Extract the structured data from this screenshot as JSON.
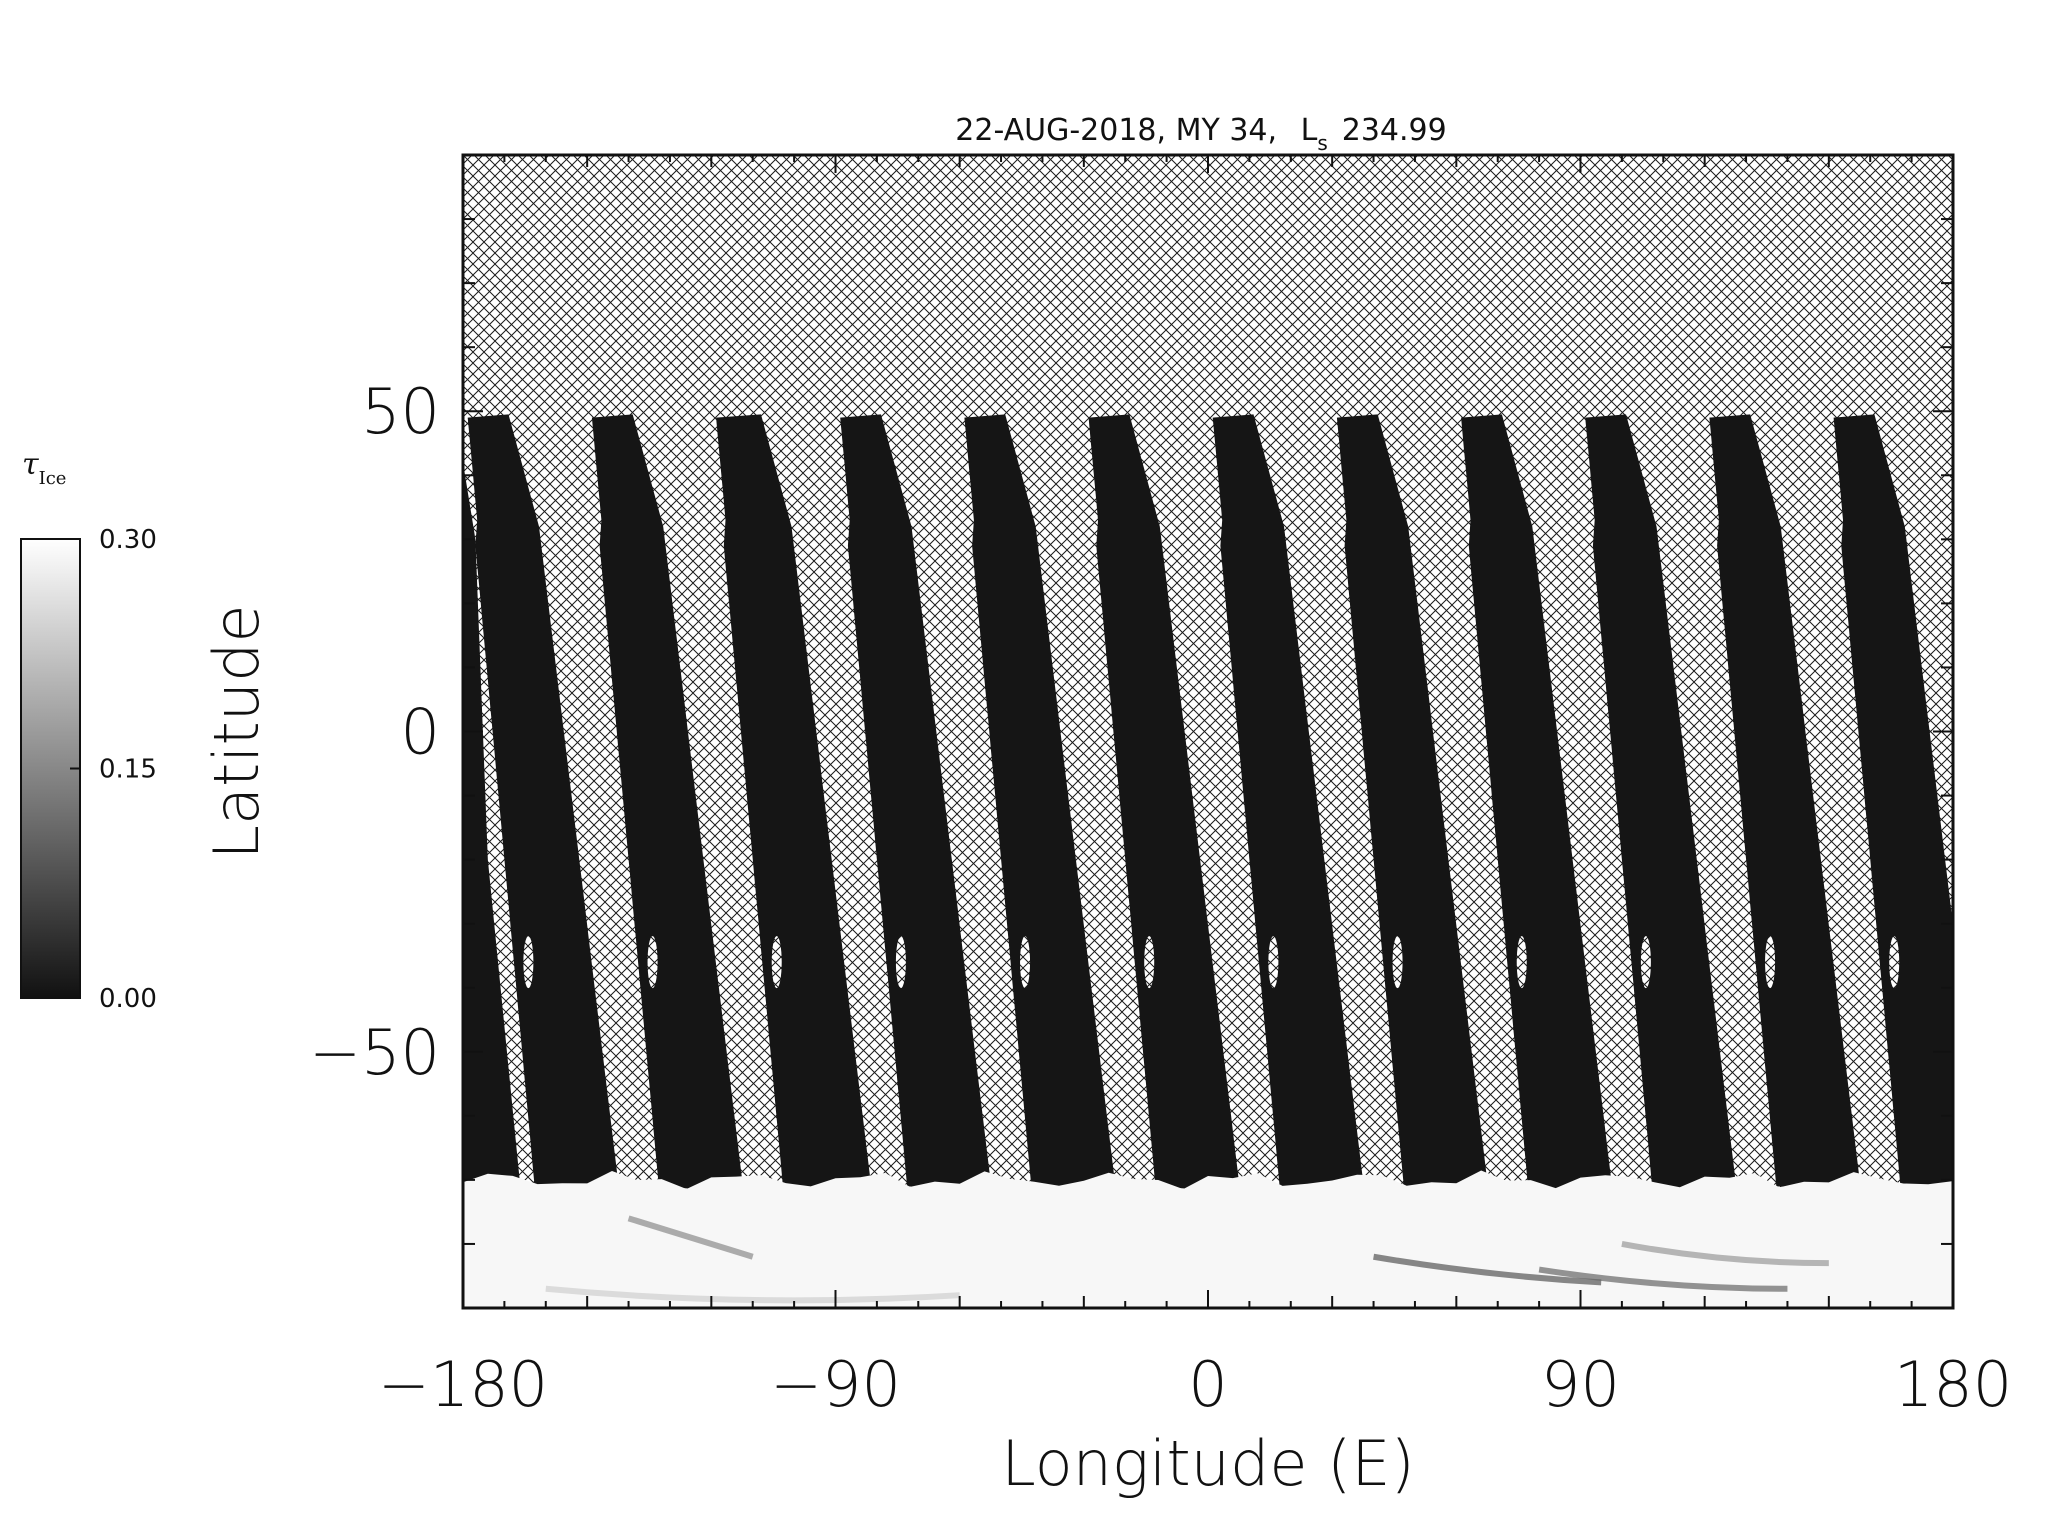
{
  "chart_data": {
    "type": "heatmap",
    "title_main": "22-AUG-2018, MY 34,",
    "title_ls_symbol": "L",
    "title_ls_sub": "s",
    "title_ls_value": "234.99",
    "xlabel": "Longitude (E)",
    "ylabel": "Latitude",
    "xlim": [
      -180,
      180
    ],
    "ylim": [
      -90,
      90
    ],
    "x_ticks": [
      {
        "value": -180,
        "label": "−180"
      },
      {
        "value": -90,
        "label": "−90"
      },
      {
        "value": 0,
        "label": "0"
      },
      {
        "value": 90,
        "label": "90"
      },
      {
        "value": 180,
        "label": "180"
      }
    ],
    "y_ticks": [
      {
        "value": -50,
        "label": "−50"
      },
      {
        "value": 0,
        "label": "0"
      },
      {
        "value": 50,
        "label": "50"
      }
    ],
    "colorbar": {
      "label_symbol": "τ",
      "label_sub": "Ice",
      "min": 0.0,
      "max": 0.3,
      "ticks": [
        {
          "value": 0.0,
          "label": "0.00"
        },
        {
          "value": 0.15,
          "label": "0.15"
        },
        {
          "value": 0.3,
          "label": "0.30"
        }
      ],
      "colors": [
        "#111111",
        "#ffffff"
      ]
    },
    "no_data_region_lat_min": 50,
    "polar_ice_lat_max": -70,
    "swaths": [
      {
        "lon_start": -180,
        "lon_end": -165
      },
      {
        "lon_start": -150,
        "lon_end": -135
      },
      {
        "lon_start": -120,
        "lon_end": -104
      },
      {
        "lon_start": -90,
        "lon_end": -75
      },
      {
        "lon_start": -60,
        "lon_end": -45
      },
      {
        "lon_start": -30,
        "lon_end": -15
      },
      {
        "lon_start": 0,
        "lon_end": 15
      },
      {
        "lon_start": 30,
        "lon_end": 45
      },
      {
        "lon_start": 60,
        "lon_end": 75
      },
      {
        "lon_start": 90,
        "lon_end": 105
      },
      {
        "lon_start": 120,
        "lon_end": 135
      },
      {
        "lon_start": 150,
        "lon_end": 165
      }
    ]
  }
}
